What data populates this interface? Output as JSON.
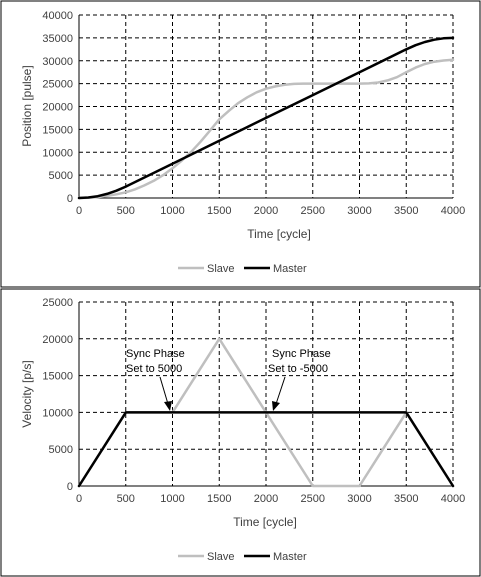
{
  "chart_data": [
    {
      "type": "line",
      "xlabel": "Time [cycle]",
      "ylabel": "Position [pulse]",
      "xlim": [
        0,
        4000
      ],
      "ylim": [
        0,
        40000
      ],
      "x_ticks": [
        "0",
        "500",
        "1000",
        "1500",
        "2000",
        "2500",
        "3000",
        "3500",
        "4000"
      ],
      "y_ticks": [
        "0",
        "5000",
        "10000",
        "15000",
        "20000",
        "25000",
        "30000",
        "35000",
        "40000"
      ],
      "grid": "dashed",
      "legend": "bottom",
      "series": [
        {
          "name": "Slave",
          "color": "#bfbfbf",
          "points": [
            [
              0,
              0
            ],
            [
              100,
              50
            ],
            [
              200,
              200
            ],
            [
              300,
              450
            ],
            [
              400,
              800
            ],
            [
              500,
              1250
            ],
            [
              600,
              1900
            ],
            [
              700,
              2750
            ],
            [
              800,
              3750
            ],
            [
              900,
              5000
            ],
            [
              1000,
              6500
            ],
            [
              1100,
              8200
            ],
            [
              1200,
              10100
            ],
            [
              1300,
              12300
            ],
            [
              1400,
              14700
            ],
            [
              1500,
              17200
            ],
            [
              1600,
              19000
            ],
            [
              1700,
              20700
            ],
            [
              1800,
              22000
            ],
            [
              1900,
              23100
            ],
            [
              2000,
              23900
            ],
            [
              2100,
              24400
            ],
            [
              2200,
              24750
            ],
            [
              2300,
              24950
            ],
            [
              2400,
              25000
            ],
            [
              2500,
              25000
            ],
            [
              2600,
              25000
            ],
            [
              2700,
              25000
            ],
            [
              2800,
              25000
            ],
            [
              2900,
              25000
            ],
            [
              3000,
              25000
            ],
            [
              3100,
              25050
            ],
            [
              3200,
              25250
            ],
            [
              3300,
              25700
            ],
            [
              3400,
              26400
            ],
            [
              3500,
              27500
            ],
            [
              3600,
              28500
            ],
            [
              3700,
              29300
            ],
            [
              3800,
              29800
            ],
            [
              3900,
              30050
            ],
            [
              4000,
              30200
            ]
          ]
        },
        {
          "name": "Master",
          "color": "#000000",
          "points": [
            [
              0,
              0
            ],
            [
              100,
              100
            ],
            [
              200,
              400
            ],
            [
              300,
              900
            ],
            [
              400,
              1600
            ],
            [
              500,
              2500
            ],
            [
              1000,
              7500
            ],
            [
              1500,
              12500
            ],
            [
              2000,
              17500
            ],
            [
              2500,
              22500
            ],
            [
              3000,
              27500
            ],
            [
              3500,
              32500
            ],
            [
              3600,
              33400
            ],
            [
              3700,
              34100
            ],
            [
              3800,
              34600
            ],
            [
              3900,
              34900
            ],
            [
              4000,
              35000
            ]
          ]
        }
      ]
    },
    {
      "type": "line",
      "xlabel": "Time [cycle]",
      "ylabel": "Velocity [p/s]",
      "xlim": [
        0,
        4000
      ],
      "ylim": [
        0,
        25000
      ],
      "x_ticks": [
        "0",
        "500",
        "1000",
        "1500",
        "2000",
        "2500",
        "3000",
        "3500",
        "4000"
      ],
      "y_ticks": [
        "0",
        "5000",
        "10000",
        "15000",
        "20000",
        "25000"
      ],
      "grid": "dashed",
      "legend": "bottom",
      "series": [
        {
          "name": "Slave",
          "color": "#bfbfbf",
          "points": [
            [
              0,
              0
            ],
            [
              500,
              10000
            ],
            [
              1000,
              10000
            ],
            [
              1500,
              20000
            ],
            [
              2000,
              10000
            ],
            [
              2500,
              0
            ],
            [
              3000,
              0
            ],
            [
              3500,
              10000
            ],
            [
              4000,
              0
            ]
          ]
        },
        {
          "name": "Master",
          "color": "#000000",
          "points": [
            [
              0,
              0
            ],
            [
              500,
              10000
            ],
            [
              3500,
              10000
            ],
            [
              4000,
              0
            ]
          ]
        }
      ],
      "annotations": [
        {
          "lines": [
            "Sync Phase",
            "Set to 5000"
          ],
          "target": [
            950,
            10000
          ]
        },
        {
          "lines": [
            "Sync Phase",
            "Set to -5000"
          ],
          "target": [
            2050,
            10000
          ]
        }
      ]
    }
  ]
}
